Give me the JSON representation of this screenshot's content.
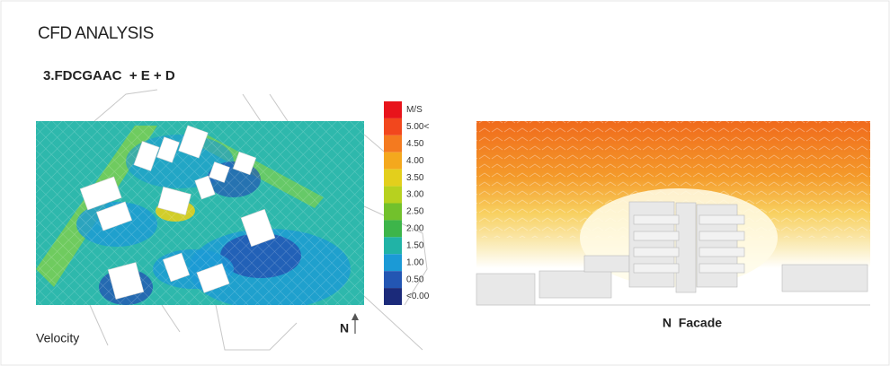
{
  "header": {
    "title": "CFD ANALYSIS",
    "subtitle": "3.FDCGAAC  + E + D"
  },
  "legend": {
    "items": [
      {
        "label": "M/S",
        "color": "#e8141b"
      },
      {
        "label": "5.00<",
        "color": "#f2471d"
      },
      {
        "label": "4.50",
        "color": "#f47a1f"
      },
      {
        "label": "4.00",
        "color": "#f4a81d"
      },
      {
        "label": "3.50",
        "color": "#e3cf1c"
      },
      {
        "label": "3.00",
        "color": "#b7d11f"
      },
      {
        "label": "2.50",
        "color": "#72c12c"
      },
      {
        "label": "2.00",
        "color": "#3db54a"
      },
      {
        "label": "1.50",
        "color": "#21b3a6"
      },
      {
        "label": "1.00",
        "color": "#1b9ad6"
      },
      {
        "label": "0.50",
        "color": "#2356b3"
      },
      {
        "label": "<0.00",
        "color": "#1b2a7a"
      }
    ]
  },
  "left_panel": {
    "north": "N",
    "caption": "Velocity"
  },
  "right_panel": {
    "caption": "N  Facade"
  }
}
